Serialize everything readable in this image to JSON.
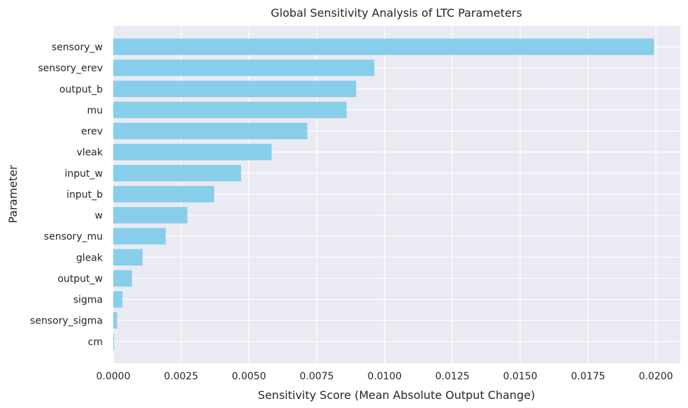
{
  "chart_data": {
    "type": "bar",
    "orientation": "horizontal",
    "title": "Global Sensitivity Analysis of LTC Parameters",
    "xlabel": "Sensitivity Score (Mean Absolute Output Change)",
    "ylabel": "Parameter",
    "xlim": [
      0,
      0.0209
    ],
    "xticks": [
      0.0,
      0.0025,
      0.005,
      0.0075,
      0.01,
      0.0125,
      0.015,
      0.0175,
      0.02
    ],
    "xtick_labels": [
      "0.0000",
      "0.0025",
      "0.0050",
      "0.0075",
      "0.0100",
      "0.0125",
      "0.0150",
      "0.0175",
      "0.0200"
    ],
    "grid": true,
    "bar_color": "#87CEEB",
    "background_color": "#EAEAF2",
    "categories": [
      "sensory_w",
      "sensory_erev",
      "output_b",
      "mu",
      "erev",
      "vleak",
      "input_w",
      "input_b",
      "w",
      "sensory_mu",
      "gleak",
      "output_w",
      "sigma",
      "sensory_sigma",
      "cm"
    ],
    "values": [
      0.01993,
      0.00962,
      0.00895,
      0.0086,
      0.00715,
      0.00584,
      0.00471,
      0.00372,
      0.00273,
      0.00193,
      0.00108,
      0.00069,
      0.00034,
      0.00014,
      3e-05
    ]
  }
}
